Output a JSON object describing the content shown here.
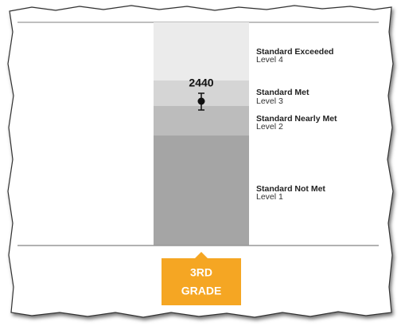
{
  "score": "2440",
  "levels": [
    {
      "name": "Standard Exceeded",
      "level": "Level 4"
    },
    {
      "name": "Standard Met",
      "level": "Level 3"
    },
    {
      "name": "Standard Nearly Met",
      "level": "Level 2"
    },
    {
      "name": "Standard Not Met",
      "level": "Level 1"
    }
  ],
  "grade": {
    "line1": "3RD",
    "line2": "GRADE"
  }
}
